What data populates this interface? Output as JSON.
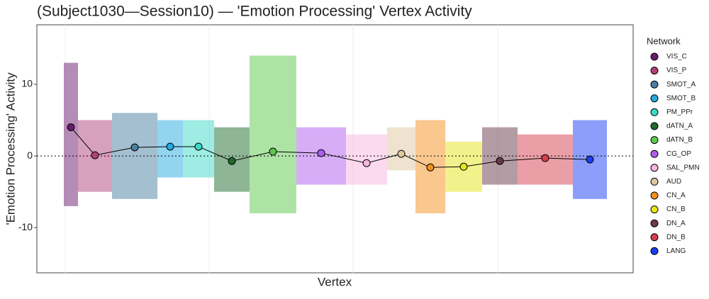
{
  "chart_data": {
    "type": "jitter",
    "title": "(Subject1030—Session10) — 'Emotion Processing' Vertex Activity",
    "x_label": "Vertex",
    "y_label": "'Emotion Processing' Activity",
    "legend_title": "Network",
    "ylim": [
      -16.3,
      18.3
    ],
    "yticks": [
      -10,
      0,
      10
    ],
    "series": [
      {
        "name": "VIS_C",
        "color": "#6a1a6e",
        "mean": 4,
        "low": -7,
        "high": 13
      },
      {
        "name": "VIS_P",
        "color": "#b0417a",
        "mean": 0.1,
        "low": -5,
        "high": 5
      },
      {
        "name": "SMOT_A",
        "color": "#4a7fa0",
        "mean": 1.2,
        "low": -6,
        "high": 6
      },
      {
        "name": "SMOT_B",
        "color": "#27a9e1",
        "mean": 1.3,
        "low": -3,
        "high": 5
      },
      {
        "name": "PM_PPr",
        "color": "#3ed9c8",
        "mean": 1.3,
        "low": -3,
        "high": 5
      },
      {
        "name": "dATN_A",
        "color": "#1e6b2b",
        "mean": -0.7,
        "low": -5,
        "high": 4
      },
      {
        "name": "dATN_B",
        "color": "#5cc94c",
        "mean": 0.6,
        "low": -8,
        "high": 14
      },
      {
        "name": "CG_OP",
        "color": "#b05cf0",
        "mean": 0.4,
        "low": -4,
        "high": 4
      },
      {
        "name": "SAL_PMN",
        "color": "#f7b6e0",
        "mean": -1,
        "low": -4,
        "high": 3
      },
      {
        "name": "AUD",
        "color": "#dfc8a0",
        "mean": 0.3,
        "low": -2,
        "high": 4
      },
      {
        "name": "CN_A",
        "color": "#f5901e",
        "mean": -1.6,
        "low": -8,
        "high": 5
      },
      {
        "name": "CN_B",
        "color": "#e6e619",
        "mean": -1.5,
        "low": -5,
        "high": 2
      },
      {
        "name": "DN_A",
        "color": "#6a3a4a",
        "mean": -0.7,
        "low": -4,
        "high": 4
      },
      {
        "name": "DN_B",
        "color": "#d63e4e",
        "mean": -0.3,
        "low": -4,
        "high": 3
      },
      {
        "name": "LANG",
        "color": "#1a3ef5",
        "mean": -0.5,
        "low": -6,
        "high": 5
      }
    ]
  }
}
